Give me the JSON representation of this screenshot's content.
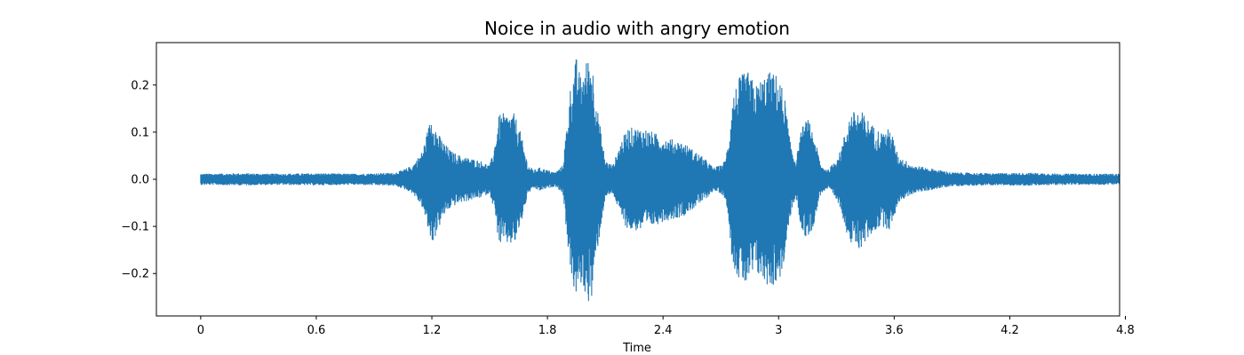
{
  "chart_data": {
    "type": "line",
    "title": "Noice in audio with angry emotion",
    "xlabel": "Time",
    "ylabel": "",
    "xlim": [
      -0.23,
      4.77
    ],
    "ylim": [
      -0.29,
      0.29
    ],
    "x_ticks": [
      0,
      0.6,
      1.2,
      1.8,
      2.4,
      3.0,
      3.6,
      4.2,
      4.8
    ],
    "x_tick_labels": [
      "0",
      "0.6",
      "1.2",
      "1.8",
      "2.4",
      "3",
      "3.6",
      "4.2",
      "4.8"
    ],
    "y_ticks": [
      -0.2,
      -0.1,
      0.0,
      0.1,
      0.2
    ],
    "y_tick_labels": [
      "−0.2",
      "−0.1",
      "0.0",
      "0.1",
      "0.2"
    ],
    "grid": false,
    "series_color": "#1f77b4",
    "x_range": [
      0,
      4.77
    ],
    "envelope": {
      "x": [
        0,
        0.2,
        0.4,
        0.6,
        0.8,
        1.0,
        1.05,
        1.1,
        1.15,
        1.2,
        1.23,
        1.26,
        1.3,
        1.35,
        1.4,
        1.45,
        1.5,
        1.52,
        1.55,
        1.6,
        1.63,
        1.66,
        1.7,
        1.73,
        1.76,
        1.8,
        1.84,
        1.88,
        1.92,
        1.95,
        1.97,
        1.99,
        2.01,
        2.03,
        2.06,
        2.1,
        2.14,
        2.18,
        2.22,
        2.3,
        2.4,
        2.5,
        2.6,
        2.64,
        2.66,
        2.7,
        2.72,
        2.74,
        2.76,
        2.8,
        2.84,
        2.88,
        2.92,
        2.96,
        3.0,
        3.03,
        3.06,
        3.09,
        3.12,
        3.15,
        3.18,
        3.22,
        3.26,
        3.32,
        3.37,
        3.42,
        3.46,
        3.5,
        3.54,
        3.58,
        3.62,
        3.7,
        3.9,
        4.1,
        4.3,
        4.5,
        4.77
      ],
      "upper": [
        0.012,
        0.013,
        0.012,
        0.013,
        0.012,
        0.014,
        0.02,
        0.03,
        0.06,
        0.14,
        0.1,
        0.08,
        0.06,
        0.05,
        0.045,
        0.04,
        0.03,
        0.06,
        0.14,
        0.14,
        0.14,
        0.1,
        0.03,
        0.02,
        0.025,
        0.02,
        0.015,
        0.03,
        0.2,
        0.26,
        0.22,
        0.24,
        0.26,
        0.26,
        0.15,
        0.04,
        0.03,
        0.08,
        0.11,
        0.11,
        0.09,
        0.08,
        0.05,
        0.035,
        0.025,
        0.03,
        0.04,
        0.08,
        0.18,
        0.22,
        0.23,
        0.2,
        0.22,
        0.23,
        0.22,
        0.18,
        0.08,
        0.04,
        0.11,
        0.13,
        0.1,
        0.03,
        0.02,
        0.06,
        0.14,
        0.15,
        0.13,
        0.11,
        0.1,
        0.11,
        0.05,
        0.03,
        0.015,
        0.013,
        0.014,
        0.012,
        0.012
      ],
      "lower": [
        -0.012,
        -0.013,
        -0.012,
        -0.013,
        -0.012,
        -0.014,
        -0.02,
        -0.03,
        -0.06,
        -0.14,
        -0.11,
        -0.08,
        -0.06,
        -0.05,
        -0.045,
        -0.04,
        -0.03,
        -0.06,
        -0.14,
        -0.14,
        -0.14,
        -0.1,
        -0.03,
        -0.02,
        -0.025,
        -0.02,
        -0.015,
        -0.03,
        -0.2,
        -0.26,
        -0.22,
        -0.24,
        -0.26,
        -0.26,
        -0.15,
        -0.04,
        -0.03,
        -0.08,
        -0.11,
        -0.11,
        -0.09,
        -0.08,
        -0.05,
        -0.035,
        -0.025,
        -0.03,
        -0.04,
        -0.08,
        -0.18,
        -0.22,
        -0.23,
        -0.2,
        -0.22,
        -0.23,
        -0.22,
        -0.18,
        -0.08,
        -0.04,
        -0.11,
        -0.13,
        -0.1,
        -0.03,
        -0.02,
        -0.06,
        -0.14,
        -0.15,
        -0.13,
        -0.11,
        -0.1,
        -0.11,
        -0.05,
        -0.03,
        -0.015,
        -0.013,
        -0.014,
        -0.012,
        -0.012
      ]
    }
  }
}
